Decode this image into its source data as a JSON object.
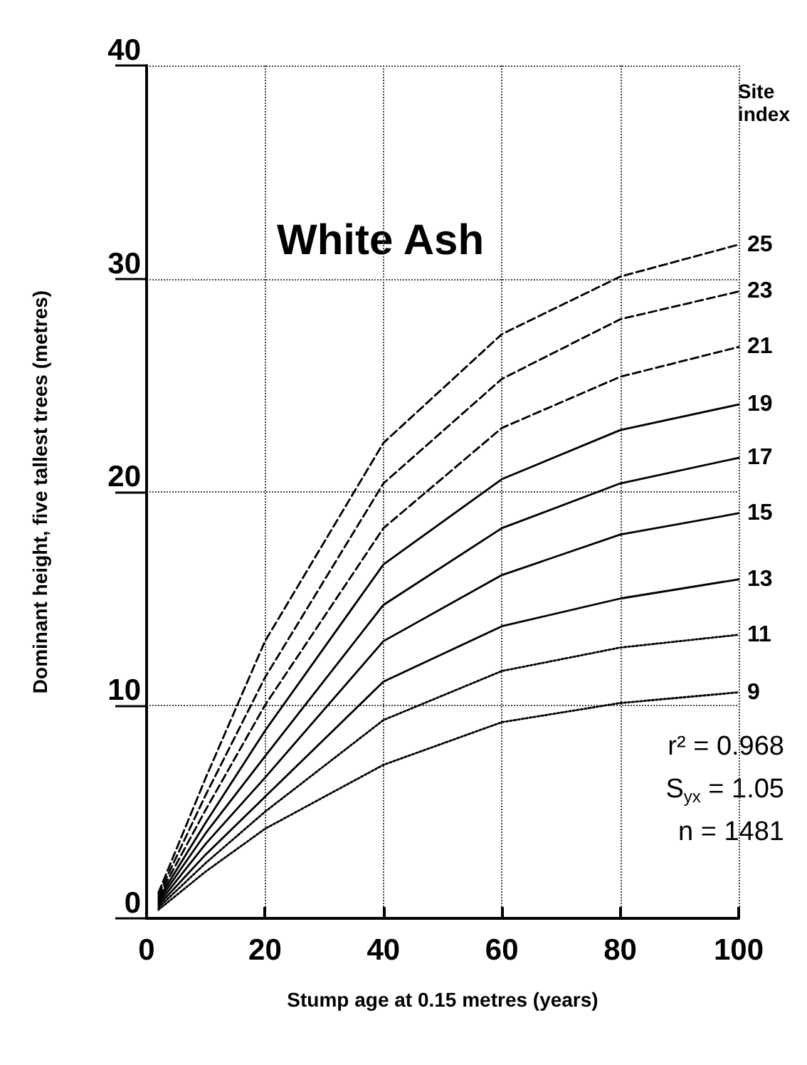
{
  "chart_data": {
    "type": "line",
    "title": "White Ash",
    "xlabel": "Stump age at 0.15 metres (years)",
    "ylabel": "Dominant height, five tallest trees (metres)",
    "legend_title": "Site index",
    "x": [
      2,
      10,
      20,
      40,
      60,
      80,
      100
    ],
    "series": [
      {
        "name": "25",
        "color": "#000000",
        "line_style": "dashed",
        "values": [
          1.2,
          6.6,
          13.0,
          22.3,
          27.4,
          30.1,
          31.6
        ]
      },
      {
        "name": "23",
        "color": "#000000",
        "line_style": "dashed",
        "values": [
          1.1,
          5.8,
          11.3,
          20.4,
          25.3,
          28.1,
          29.4
        ]
      },
      {
        "name": "21",
        "color": "#000000",
        "line_style": "dashed",
        "values": [
          1.0,
          5.1,
          10.0,
          18.3,
          23.0,
          25.4,
          26.8
        ]
      },
      {
        "name": "19",
        "color": "#000000",
        "line_style": "solid",
        "values": [
          0.9,
          4.5,
          8.8,
          16.6,
          20.6,
          22.9,
          24.1
        ]
      },
      {
        "name": "17",
        "color": "#000000",
        "line_style": "solid",
        "values": [
          0.8,
          4.0,
          7.6,
          14.7,
          18.3,
          20.4,
          21.6
        ]
      },
      {
        "name": "15",
        "color": "#000000",
        "line_style": "solid",
        "values": [
          0.7,
          3.5,
          6.6,
          13.0,
          16.1,
          18.0,
          19.0
        ]
      },
      {
        "name": "13",
        "color": "#000000",
        "line_style": "solid",
        "values": [
          0.6,
          3.0,
          5.7,
          11.1,
          13.7,
          15.0,
          15.9
        ]
      },
      {
        "name": "11",
        "color": "#000000",
        "line_style": "dotted",
        "values": [
          0.5,
          2.6,
          5.0,
          9.3,
          11.6,
          12.7,
          13.3
        ]
      },
      {
        "name": "9",
        "color": "#000000",
        "line_style": "dotted",
        "values": [
          0.4,
          2.2,
          4.2,
          7.2,
          9.2,
          10.1,
          10.6
        ]
      }
    ],
    "xlim": [
      0,
      100
    ],
    "ylim": [
      0,
      40
    ],
    "xticks": [
      0,
      20,
      40,
      60,
      80,
      100
    ],
    "yticks": [
      0,
      10,
      20,
      30,
      40
    ],
    "grid": true,
    "marker": "none",
    "annotations": [
      "r² = 0.968",
      "S$_{yx}$ = 1.05",
      "n = 1481"
    ]
  }
}
